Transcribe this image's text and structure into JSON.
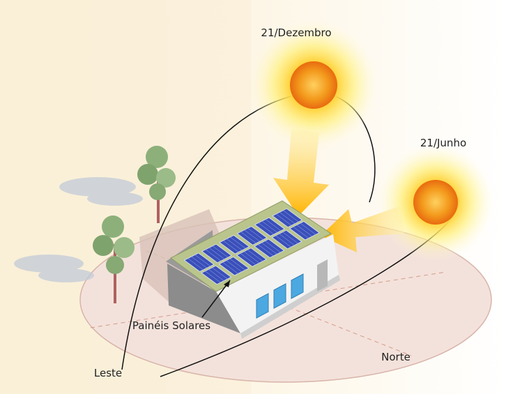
{
  "labels": {
    "december_sun": "21/Dezembro",
    "june_sun": "21/Junho",
    "panels": "Painéis Solares",
    "east": "Leste",
    "north": "Norte"
  }
}
